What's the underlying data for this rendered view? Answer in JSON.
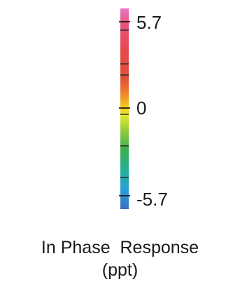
{
  "colorbar": {
    "ticks": {
      "top": "5.7",
      "middle": "0",
      "bottom": "-5.7"
    },
    "gradient_colors": [
      "#e879c8",
      "#e24a4a",
      "#f08a2a",
      "#e8e830",
      "#3fb04c",
      "#2aa0d8",
      "#3a6ec4"
    ]
  },
  "caption": {
    "line1": "In Phase  Response",
    "line2": "(ppt)"
  }
}
